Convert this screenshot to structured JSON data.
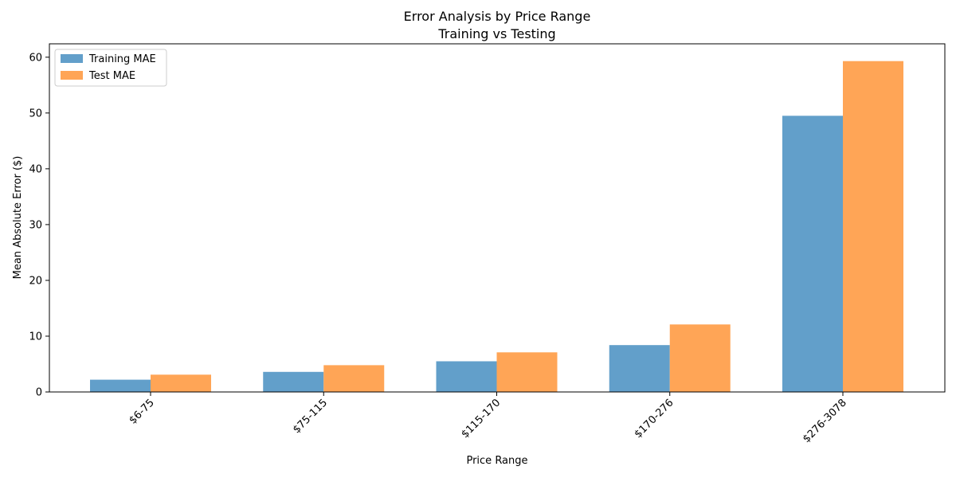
{
  "chart_data": {
    "type": "bar",
    "title": "Error Analysis by Price Range",
    "subtitle": "Training vs Testing",
    "xlabel": "Price Range",
    "ylabel": "Mean Absolute Error ($)",
    "categories": [
      "$6-75",
      "$75-115",
      "$115-170",
      "$170-276",
      "$276-3078"
    ],
    "series": [
      {
        "name": "Training MAE",
        "color": "#629fca",
        "values": [
          2.2,
          3.6,
          5.5,
          8.4,
          49.5
        ]
      },
      {
        "name": "Test MAE",
        "color": "#ffa556",
        "values": [
          3.1,
          4.8,
          7.1,
          12.1,
          59.3
        ]
      }
    ],
    "ylim": [
      0,
      62.4
    ],
    "yticks": [
      0,
      10,
      20,
      30,
      40,
      50,
      60
    ],
    "grid": false,
    "legend_position": "top-left",
    "xtick_rotation": "45 degrees"
  }
}
